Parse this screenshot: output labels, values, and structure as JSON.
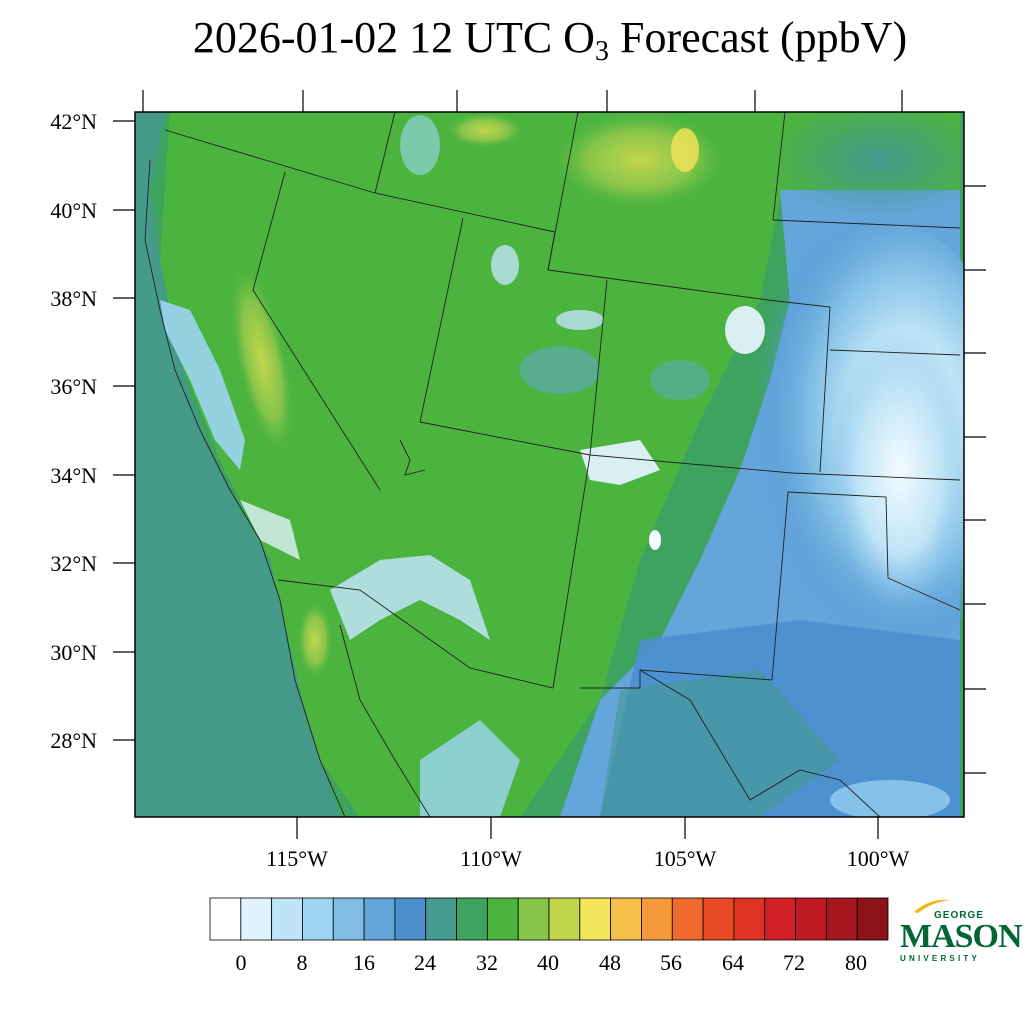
{
  "title": {
    "prefix": "2026-01-02 12 UTC O",
    "subscript": "3",
    "suffix": " Forecast (ppbV)"
  },
  "map": {
    "lat_labels": [
      "42°N",
      "40°N",
      "38°N",
      "36°N",
      "34°N",
      "32°N",
      "30°N",
      "28°N"
    ],
    "lon_labels": [
      "115°W",
      "110°W",
      "105°W",
      "100°W"
    ]
  },
  "colorbar": {
    "labels": [
      "0",
      "8",
      "16",
      "24",
      "32",
      "40",
      "48",
      "56",
      "64",
      "72",
      "80"
    ],
    "colors": [
      "#ffffff",
      "#e0f2fb",
      "#bfe4f7",
      "#9dd5f2",
      "#7fbde5",
      "#64a6dc",
      "#4b8fcf",
      "#45998f",
      "#3fa360",
      "#4bb43f",
      "#86c44a",
      "#c2d64c",
      "#f5e55a",
      "#f7c048",
      "#f5993a",
      "#f06a2d",
      "#e84a28",
      "#de3426",
      "#d21f26",
      "#bd1a22",
      "#a6161e",
      "#8c1318"
    ]
  },
  "logo": {
    "line1": "GEORGE",
    "line2": "MASON",
    "line3": "UNIVERSITY",
    "color": "#006633",
    "accent": "#f2b600"
  }
}
